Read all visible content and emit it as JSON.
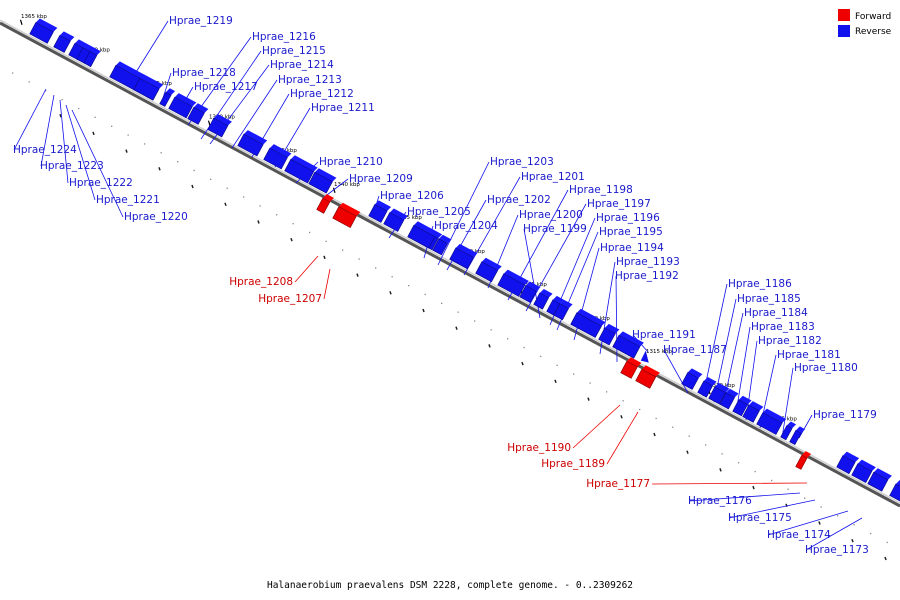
{
  "colors": {
    "forward": "#ee0000",
    "reverse": "#1111ee",
    "backbone": "#777777"
  },
  "legend": [
    {
      "label": "Forward",
      "strand": "forward"
    },
    {
      "label": "Reverse",
      "strand": "reverse"
    }
  ],
  "caption": "Halanaerobium praevalens DSM 2228, complete genome. - 0..2309262",
  "ticks": [
    {
      "label": "1365 kbp"
    },
    {
      "label": "1360 kbp"
    },
    {
      "label": "1355 kbp"
    },
    {
      "label": "1350 kbp"
    },
    {
      "label": "1345 kbp"
    },
    {
      "label": "1340 kbp"
    },
    {
      "label": "1335 kbp"
    },
    {
      "label": "1330 kbp"
    },
    {
      "label": "1325 kbp"
    },
    {
      "label": "1320 kbp"
    },
    {
      "label": "1315 kbp"
    },
    {
      "label": "1310 kbp"
    },
    {
      "label": "1305 kbp"
    }
  ],
  "genes": [
    {
      "name": "Hprae_1219",
      "strand": "reverse"
    },
    {
      "name": "Hprae_1216",
      "strand": "reverse"
    },
    {
      "name": "Hprae_1215",
      "strand": "reverse"
    },
    {
      "name": "Hprae_1214",
      "strand": "reverse"
    },
    {
      "name": "Hprae_1218",
      "strand": "reverse"
    },
    {
      "name": "Hprae_1213",
      "strand": "reverse"
    },
    {
      "name": "Hprae_1217",
      "strand": "reverse"
    },
    {
      "name": "Hprae_1212",
      "strand": "reverse"
    },
    {
      "name": "Hprae_1211",
      "strand": "reverse"
    },
    {
      "name": "Hprae_1224",
      "strand": "reverse"
    },
    {
      "name": "Hprae_1223",
      "strand": "reverse"
    },
    {
      "name": "Hprae_1222",
      "strand": "reverse"
    },
    {
      "name": "Hprae_1221",
      "strand": "reverse"
    },
    {
      "name": "Hprae_1220",
      "strand": "reverse"
    },
    {
      "name": "Hprae_1210",
      "strand": "reverse"
    },
    {
      "name": "Hprae_1209",
      "strand": "reverse"
    },
    {
      "name": "Hprae_1206",
      "strand": "reverse"
    },
    {
      "name": "Hprae_1205",
      "strand": "reverse"
    },
    {
      "name": "Hprae_1204",
      "strand": "reverse"
    },
    {
      "name": "Hprae_1208",
      "strand": "forward"
    },
    {
      "name": "Hprae_1207",
      "strand": "forward"
    },
    {
      "name": "Hprae_1203",
      "strand": "reverse"
    },
    {
      "name": "Hprae_1201",
      "strand": "reverse"
    },
    {
      "name": "Hprae_1202",
      "strand": "reverse"
    },
    {
      "name": "Hprae_1198",
      "strand": "reverse"
    },
    {
      "name": "Hprae_1197",
      "strand": "reverse"
    },
    {
      "name": "Hprae_1200",
      "strand": "reverse"
    },
    {
      "name": "Hprae_1199",
      "strand": "reverse"
    },
    {
      "name": "Hprae_1196",
      "strand": "reverse"
    },
    {
      "name": "Hprae_1195",
      "strand": "reverse"
    },
    {
      "name": "Hprae_1194",
      "strand": "reverse"
    },
    {
      "name": "Hprae_1193",
      "strand": "reverse"
    },
    {
      "name": "Hprae_1192",
      "strand": "reverse"
    },
    {
      "name": "Hprae_1191",
      "strand": "reverse"
    },
    {
      "name": "Hprae_1187",
      "strand": "reverse"
    },
    {
      "name": "Hprae_1186",
      "strand": "reverse"
    },
    {
      "name": "Hprae_1185",
      "strand": "reverse"
    },
    {
      "name": "Hprae_1184",
      "strand": "reverse"
    },
    {
      "name": "Hprae_1183",
      "strand": "reverse"
    },
    {
      "name": "Hprae_1182",
      "strand": "reverse"
    },
    {
      "name": "Hprae_1181",
      "strand": "reverse"
    },
    {
      "name": "Hprae_1180",
      "strand": "reverse"
    },
    {
      "name": "Hprae_1179",
      "strand": "reverse"
    },
    {
      "name": "Hprae_1190",
      "strand": "forward"
    },
    {
      "name": "Hprae_1189",
      "strand": "forward"
    },
    {
      "name": "Hprae_1177",
      "strand": "forward"
    },
    {
      "name": "Hprae_1176",
      "strand": "reverse"
    },
    {
      "name": "Hprae_1175",
      "strand": "reverse"
    },
    {
      "name": "Hprae_1174",
      "strand": "reverse"
    },
    {
      "name": "Hprae_1173",
      "strand": "reverse"
    }
  ]
}
